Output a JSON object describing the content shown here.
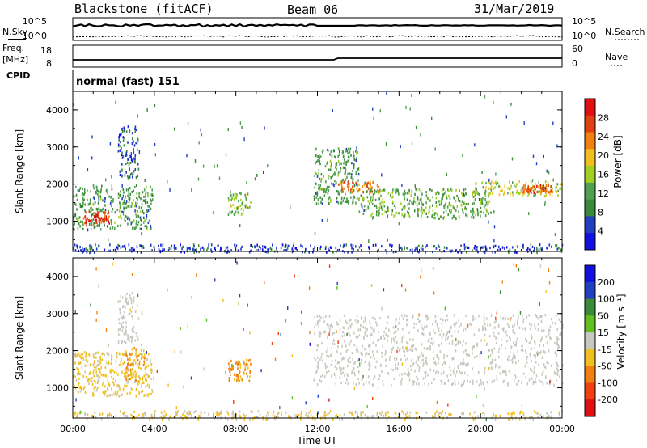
{
  "header": {
    "station": "Blackstone (fitACF)",
    "beam": "Beam 06",
    "date": "31/Mar/2019"
  },
  "top_panels": {
    "nsky_label": "N.Sky",
    "nsearch_label": "N.Search",
    "noise_ticks": [
      "10^5",
      "10^0"
    ],
    "freq_label": "Freq.",
    "freq_unit": "[MHz]",
    "freq_ticks": [
      "18",
      "8"
    ],
    "nave_label": "Nave",
    "nave_ticks": [
      "60",
      "0"
    ],
    "cpid_label": "CPID",
    "cpid_text": "normal (fast) 151"
  },
  "colors": {
    "power_scale": [
      "#1010e0",
      "#2040c0",
      "#3a8a3a",
      "#50a050",
      "#a0d020",
      "#f0c020",
      "#f08010",
      "#e04010",
      "#e01010"
    ],
    "velocity_scale": [
      "#e01010",
      "#f04010",
      "#f08010",
      "#f0c020",
      "#c8c8c0",
      "#60c020",
      "#3a8a3a",
      "#2040c0",
      "#1010e0"
    ]
  },
  "chart_data": [
    {
      "type": "heatmap",
      "title": "Power",
      "xlabel": "",
      "ylabel": "Slant Range [km]",
      "xlim": [
        "00:00",
        "24:00"
      ],
      "ylim": [
        180,
        4500
      ],
      "yticks": [
        "1000",
        "2000",
        "3000",
        "4000"
      ],
      "colorbar": {
        "label": "Power [dB]",
        "ticks": [
          "4",
          "8",
          "12",
          "16",
          "20",
          "24",
          "28"
        ],
        "range": [
          0,
          30
        ]
      },
      "regions": [
        {
          "t": [
            0.0,
            3.9
          ],
          "r": [
            800,
            2000
          ],
          "level": 10
        },
        {
          "t": [
            0.5,
            1.8
          ],
          "r": [
            900,
            1300
          ],
          "level": 26
        },
        {
          "t": [
            2.2,
            3.2
          ],
          "r": [
            2200,
            3600
          ],
          "level": 6
        },
        {
          "t": [
            7.6,
            8.7
          ],
          "r": [
            1200,
            1800
          ],
          "level": 14
        },
        {
          "t": [
            11.8,
            14.0
          ],
          "r": [
            1500,
            3000
          ],
          "level": 10
        },
        {
          "t": [
            13.0,
            15.0
          ],
          "r": [
            1800,
            2100
          ],
          "level": 22
        },
        {
          "t": [
            14.0,
            20.5
          ],
          "r": [
            1100,
            1900
          ],
          "level": 12
        },
        {
          "t": [
            19.5,
            24.0
          ],
          "r": [
            1700,
            2100
          ],
          "level": 16
        },
        {
          "t": [
            22.0,
            23.5
          ],
          "r": [
            1800,
            2000
          ],
          "level": 24
        },
        {
          "t": [
            0.0,
            24.0
          ],
          "r": [
            180,
            400
          ],
          "level": 4
        }
      ]
    },
    {
      "type": "heatmap",
      "title": "Velocity",
      "xlabel": "Time UT",
      "ylabel": "Slant Range [km]",
      "xlim": [
        "00:00",
        "24:00"
      ],
      "ylim": [
        180,
        4500
      ],
      "xticks": [
        "00:00",
        "04:00",
        "08:00",
        "12:00",
        "16:00",
        "20:00",
        "00:00"
      ],
      "yticks": [
        "1000",
        "2000",
        "3000",
        "4000"
      ],
      "colorbar": {
        "label": "Velocity [m s⁻¹]",
        "ticks": [
          "200",
          "100",
          "50",
          "15",
          "-15",
          "-50",
          "-100",
          "-200"
        ],
        "range": [
          -250,
          250
        ]
      },
      "regions": [
        {
          "t": [
            0.0,
            3.9
          ],
          "r": [
            800,
            2000
          ],
          "velocity": -40
        },
        {
          "t": [
            2.5,
            3.5
          ],
          "r": [
            1200,
            2200
          ],
          "velocity": -80
        },
        {
          "t": [
            2.2,
            3.2
          ],
          "r": [
            2200,
            3600
          ],
          "velocity": 0
        },
        {
          "t": [
            7.6,
            8.7
          ],
          "r": [
            1200,
            1800
          ],
          "velocity": -90
        },
        {
          "t": [
            11.8,
            24.0
          ],
          "r": [
            1100,
            3000
          ],
          "velocity": 0
        },
        {
          "t": [
            0.0,
            24.0
          ],
          "r": [
            180,
            400
          ],
          "velocity": -30
        }
      ]
    }
  ]
}
